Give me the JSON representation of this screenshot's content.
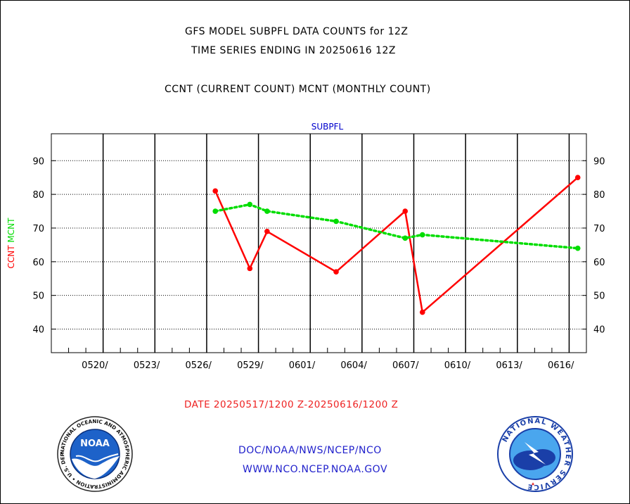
{
  "header": {
    "line1": "GFS MODEL SUBPFL DATA COUNTS for 12Z",
    "line2": "TIME SERIES ENDING IN 20250616 12Z",
    "line3": "CCNT (CURRENT COUNT) MCNT (MONTHLY COUNT)"
  },
  "chart_data": {
    "type": "line",
    "title": "SUBPFL",
    "ylabel_parts": [
      {
        "text": "CCNT",
        "color": "#ff0000"
      },
      {
        "text": "MCNT",
        "color": "#00dd00"
      }
    ],
    "xlabel": "DATE 20250517/1200 Z-20250616/1200 Z",
    "xlim": [
      "2025-05-17",
      "2025-06-17"
    ],
    "ylim": [
      33,
      98
    ],
    "yticks": [
      40,
      50,
      60,
      70,
      80,
      90
    ],
    "xticks": [
      {
        "date": "2025-05-20",
        "label": "0520/"
      },
      {
        "date": "2025-05-23",
        "label": "0523/"
      },
      {
        "date": "2025-05-26",
        "label": "0526/"
      },
      {
        "date": "2025-05-29",
        "label": "0529/"
      },
      {
        "date": "2025-06-01",
        "label": "0601/"
      },
      {
        "date": "2025-06-04",
        "label": "0604/"
      },
      {
        "date": "2025-06-07",
        "label": "0607/"
      },
      {
        "date": "2025-06-10",
        "label": "0610/"
      },
      {
        "date": "2025-06-13",
        "label": "0613/"
      },
      {
        "date": "2025-06-16",
        "label": "0616/"
      }
    ],
    "grid": true,
    "series": [
      {
        "name": "CCNT",
        "color": "#ff0000",
        "style": "solid",
        "points": [
          {
            "x": "2025-05-26 12:00",
            "y": 81
          },
          {
            "x": "2025-05-28 12:00",
            "y": 58
          },
          {
            "x": "2025-05-29 12:00",
            "y": 69
          },
          {
            "x": "2025-06-02 12:00",
            "y": 57
          },
          {
            "x": "2025-06-06 12:00",
            "y": 75
          },
          {
            "x": "2025-06-07 12:00",
            "y": 45
          },
          {
            "x": "2025-06-16 12:00",
            "y": 85
          }
        ]
      },
      {
        "name": "MCNT",
        "color": "#00dd00",
        "style": "dotted",
        "points": [
          {
            "x": "2025-05-26 12:00",
            "y": 75
          },
          {
            "x": "2025-05-28 12:00",
            "y": 77
          },
          {
            "x": "2025-05-29 12:00",
            "y": 75
          },
          {
            "x": "2025-06-02 12:00",
            "y": 72
          },
          {
            "x": "2025-06-06 12:00",
            "y": 67
          },
          {
            "x": "2025-06-07 12:00",
            "y": 68
          },
          {
            "x": "2025-06-16 12:00",
            "y": 64
          }
        ]
      }
    ]
  },
  "footer": {
    "line1": "DOC/NOAA/NWS/NCEP/NCO",
    "line2": "WWW.NCO.NCEP.NOAA.GOV"
  },
  "logos": {
    "left": {
      "name": "noaa-logo",
      "center_text": "NOAA",
      "ring_text": "NATIONAL OCEANIC AND ATMOSPHERIC ADMINISTRATION • U.S. DEPARTMENT OF COMMERCE •"
    },
    "right": {
      "name": "nws-logo",
      "ring_text": "NATIONAL WEATHER SERVICE"
    }
  },
  "colors": {
    "title_blue": "#0000cc",
    "footer_blue": "#2222cc",
    "date_red": "#ee2222",
    "ccnt_red": "#ff0000",
    "mcnt_green": "#00dd00"
  }
}
